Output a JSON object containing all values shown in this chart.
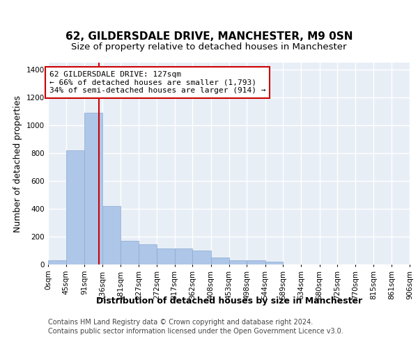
{
  "title1": "62, GILDERSDALE DRIVE, MANCHESTER, M9 0SN",
  "title2": "Size of property relative to detached houses in Manchester",
  "xlabel": "Distribution of detached houses by size in Manchester",
  "ylabel": "Number of detached properties",
  "bar_color": "#aec6e8",
  "bar_edge_color": "#88aad0",
  "background_color": "#e8eef6",
  "grid_color": "#ffffff",
  "bin_edges": [
    0,
    45,
    91,
    136,
    181,
    227,
    272,
    317,
    362,
    408,
    453,
    498,
    544,
    589,
    634,
    680,
    725,
    770,
    815,
    861,
    906
  ],
  "bar_heights": [
    30,
    820,
    1090,
    420,
    170,
    145,
    115,
    115,
    100,
    50,
    30,
    30,
    20,
    0,
    0,
    0,
    0,
    0,
    0,
    0
  ],
  "property_size": 127,
  "red_line_color": "#cc0000",
  "annotation_line1": "62 GILDERSDALE DRIVE: 127sqm",
  "annotation_line2": "← 66% of detached houses are smaller (1,793)",
  "annotation_line3": "34% of semi-detached houses are larger (914) →",
  "annotation_box_color": "#ffffff",
  "annotation_box_edge": "#cc0000",
  "ylim": [
    0,
    1450
  ],
  "yticks": [
    0,
    200,
    400,
    600,
    800,
    1000,
    1200,
    1400
  ],
  "footer_line1": "Contains HM Land Registry data © Crown copyright and database right 2024.",
  "footer_line2": "Contains public sector information licensed under the Open Government Licence v3.0.",
  "title1_fontsize": 11,
  "title2_fontsize": 9.5,
  "axis_label_fontsize": 9,
  "tick_fontsize": 7.5,
  "annotation_fontsize": 8,
  "footer_fontsize": 7
}
